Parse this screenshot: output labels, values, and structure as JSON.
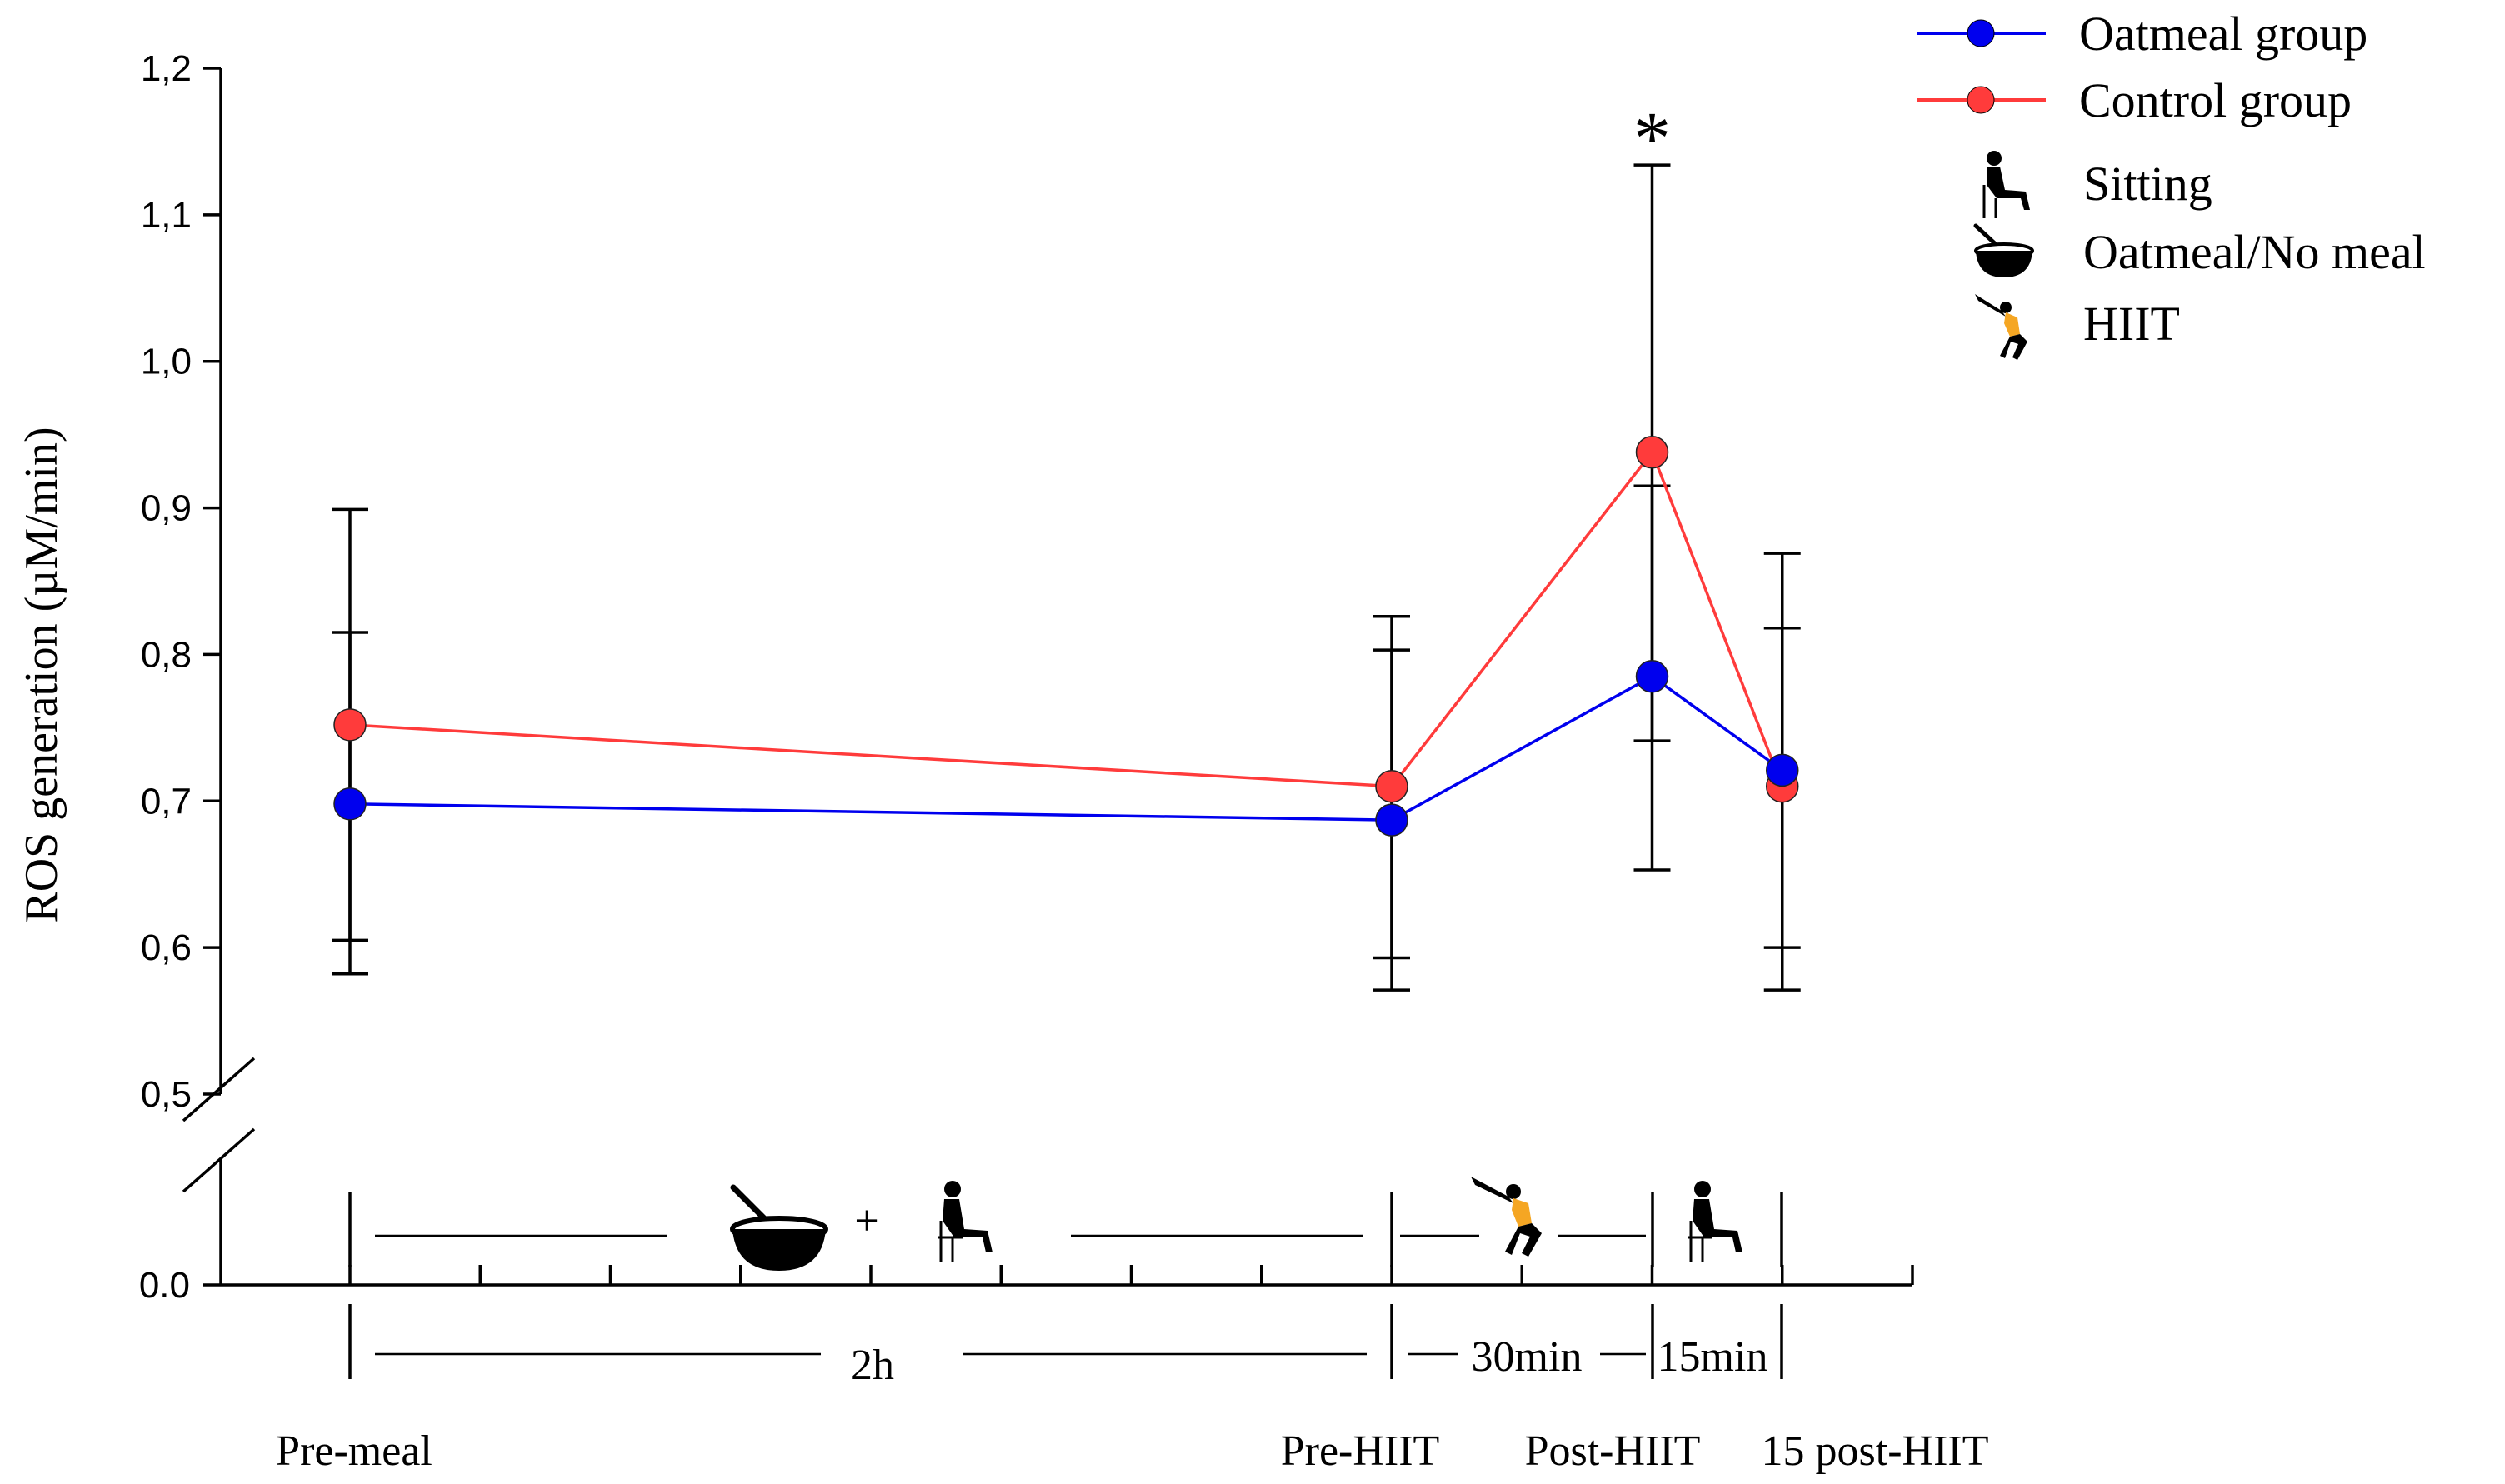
{
  "chart_data": {
    "type": "line",
    "title": "",
    "xlabel": "",
    "ylabel": "ROS generation (µM/min)",
    "ylim": [
      0.5,
      1.2
    ],
    "ytick_labels": [
      "0,5",
      "0,6",
      "0,7",
      "0,8",
      "0,9",
      "1,0",
      "1,1",
      "1,2"
    ],
    "ytick_values": [
      0.5,
      0.6,
      0.7,
      0.8,
      0.9,
      1.0,
      1.1,
      1.2
    ],
    "zero_label": "0.0",
    "axis_break": true,
    "categories": [
      "Pre-meal",
      "Pre-HIIT",
      "Post-HIIT",
      "15 post-HIIT"
    ],
    "x_minutes": [
      0,
      120,
      150,
      165
    ],
    "series": [
      {
        "name": "Oatmeal group",
        "color": "#0000ee",
        "values": [
          0.698,
          0.687,
          0.785,
          0.721
        ],
        "err_low": [
          0.582,
          0.571,
          0.653,
          0.571
        ],
        "err_high": [
          0.815,
          0.803,
          0.915,
          0.818
        ]
      },
      {
        "name": "Control group",
        "color": "#ff3b3b",
        "values": [
          0.752,
          0.71,
          0.938,
          0.71
        ],
        "err_low": [
          0.605,
          0.593,
          0.741,
          0.6
        ],
        "err_high": [
          0.899,
          0.826,
          1.134,
          0.869
        ]
      }
    ],
    "annotations": [
      {
        "text": "*",
        "category": "Post-HIIT"
      }
    ],
    "legend": {
      "position": "top-right",
      "entries": [
        "Oatmeal group",
        "Control group"
      ],
      "icons": [
        {
          "name": "sitting-icon",
          "label": "Sitting"
        },
        {
          "name": "oatmeal-bowl-icon",
          "label": "Oatmeal/No meal"
        },
        {
          "name": "hiit-icon",
          "label": "HIIT"
        }
      ]
    },
    "timeline": {
      "intervals": [
        "2h",
        "30min",
        "15min"
      ],
      "plus": "+"
    }
  }
}
